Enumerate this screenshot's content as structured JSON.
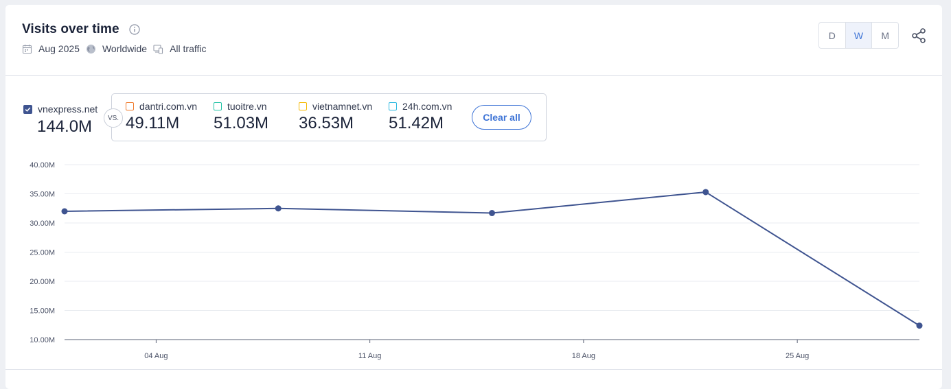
{
  "header": {
    "title": "Visits over time",
    "date": "Aug 2025",
    "region": "Worldwide",
    "traffic": "All traffic"
  },
  "granularity": {
    "options": [
      "D",
      "W",
      "M"
    ],
    "selected": "W"
  },
  "main_site": {
    "name": "vnexpress.net",
    "value": "144.0M",
    "color": "#3f5490"
  },
  "vs_label": "VS.",
  "competitors": [
    {
      "name": "dantri.com.vn",
      "value": "49.11M",
      "color": "#f07a2b"
    },
    {
      "name": "tuoitre.vn",
      "value": "51.03M",
      "color": "#22c3a6"
    },
    {
      "name": "vietnamnet.vn",
      "value": "36.53M",
      "color": "#f5b800"
    },
    {
      "name": "24h.com.vn",
      "value": "51.42M",
      "color": "#2ab8e0"
    }
  ],
  "clear_label": "Clear all",
  "chart_data": {
    "type": "line",
    "x": [
      "2025-08-01",
      "2025-08-08",
      "2025-08-15",
      "2025-08-22",
      "2025-08-29"
    ],
    "series": [
      {
        "name": "vnexpress.net",
        "color": "#3f5490",
        "values": [
          32.0,
          32.5,
          31.7,
          35.3,
          12.4
        ]
      }
    ],
    "yticks": [
      "40.00M",
      "35.00M",
      "30.00M",
      "25.00M",
      "20.00M",
      "15.00M",
      "10.00M"
    ],
    "ytick_values": [
      40,
      35,
      30,
      25,
      20,
      15,
      10
    ],
    "ylim": [
      10,
      40
    ],
    "xticks": [
      "04 Aug",
      "11 Aug",
      "18 Aug",
      "25 Aug"
    ],
    "xtick_dates": [
      "2025-08-04",
      "2025-08-11",
      "2025-08-18",
      "2025-08-25"
    ],
    "grid": true,
    "ylabel": "",
    "xlabel": ""
  }
}
